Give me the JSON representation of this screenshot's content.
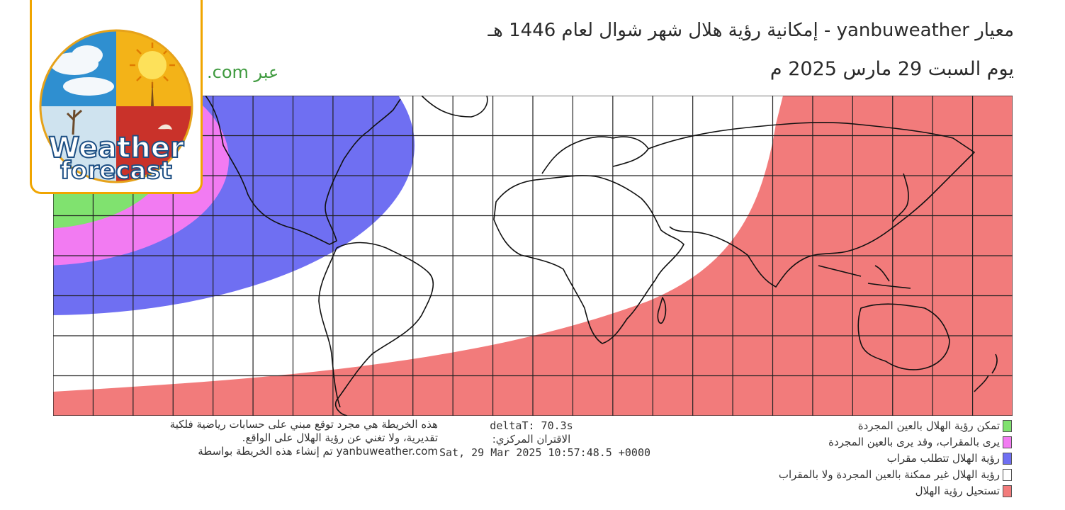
{
  "header": {
    "title": "معيار yanbuweather - إمكانية رؤية هلال شهر شوال لعام 1446 هـ",
    "date": "يوم السبت 29 مارس 2025 م",
    "via": ".com عبر"
  },
  "logo": {
    "line1": "Weather",
    "line2": "forecast"
  },
  "map": {
    "grid_columns": 24,
    "grid_rows": 8,
    "zones": [
      {
        "key": "naked_eye",
        "color": "#80e26f"
      },
      {
        "key": "telescope_maybe_eye",
        "color": "#f27bf2"
      },
      {
        "key": "telescope_needed",
        "color": "#6f6ff2"
      },
      {
        "key": "not_possible",
        "color": "#ffffff"
      },
      {
        "key": "impossible",
        "color": "#f27b7b"
      }
    ]
  },
  "footer": {
    "disclaimer": [
      "هذه الخريطة هي مجرد توقع مبني على حسابات رياضية فلكية",
      "تقديرية، ولا تغني عن رؤية الهلال على الواقع.",
      "yanbuweather.com تم إنشاء هذه الخريطة بواسطة"
    ],
    "delta_t": "deltaT: 70.3s",
    "conjunction_label": "الاقتران المركزي:",
    "generated_at": "Sat, 29 Mar 2025 10:57:48.5 +0000"
  },
  "legend": [
    {
      "label": "تمكن رؤية الهلال بالعين المجردة",
      "color": "#80e26f"
    },
    {
      "label": "يرى بالمقراب، وقد يرى بالعين المجردة",
      "color": "#f27bf2"
    },
    {
      "label": "رؤية الهلال تتطلب مقراب",
      "color": "#6f6ff2"
    },
    {
      "label": "رؤية الهلال غير ممكنة بالعين المجردة ولا بالمقراب",
      "color": "#ffffff"
    },
    {
      "label": "تستحيل رؤية الهلال",
      "color": "#f27b7b"
    }
  ]
}
